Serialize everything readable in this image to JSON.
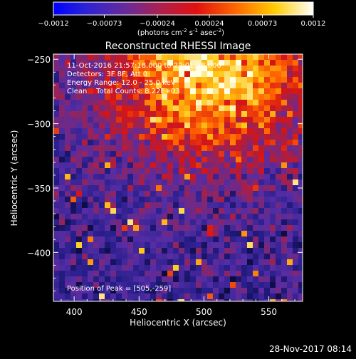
{
  "colorbar": {
    "ticks": [
      "-0.0012",
      "-0.00073",
      "-0.00024",
      "0.00024",
      "0.00073",
      "0.0012"
    ],
    "range": [
      -0.0012,
      0.0012
    ],
    "units_prefix": "(photons cm",
    "units_exp1": "-2",
    "units_mid": " s",
    "units_exp2": "-1",
    "units_mid2": " asec",
    "units_exp3": "-2",
    "units_suffix": ")"
  },
  "chart_data": {
    "type": "heatmap",
    "title": "Reconstructed RHESSI Image",
    "xlabel": "Heliocentric X (arcsec)",
    "ylabel": "Heliocentric Y (arcsec)",
    "xlim": [
      384,
      576
    ],
    "ylim": [
      -438,
      -246
    ],
    "xticks": [
      400,
      450,
      500,
      550
    ],
    "yticks": [
      -250,
      -300,
      -350,
      -400
    ],
    "xtick_labels": [
      "400",
      "450",
      "500",
      "550"
    ],
    "ytick_labels": [
      "−250",
      "−300",
      "−350",
      "−400"
    ],
    "colormap": "rainbow (blue-purple-red-orange-yellow-white)",
    "annotations": [
      "11-Oct-2016 21:57:18.000 to 22:01:18.000",
      "Detectors: 3F 8F, Att 0",
      "Energy Range: 12.0 - 25.0 keV",
      "Clean    Total Counts: 8.22E+03"
    ],
    "peak_text": "Position of Peak = [505,-259]",
    "peak_position": [
      505,
      -259
    ]
  },
  "timestamp": "28-Nov-2017 08:14"
}
